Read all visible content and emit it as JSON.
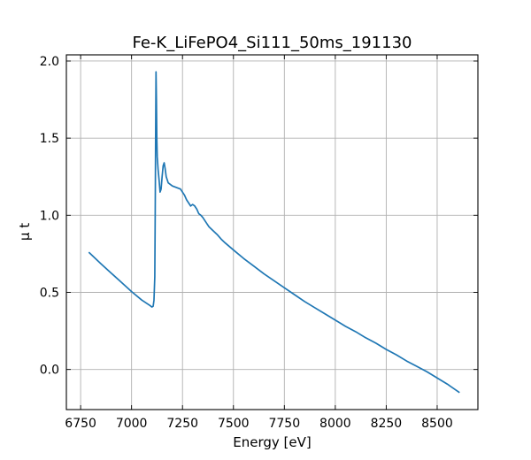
{
  "chart_data": {
    "type": "line",
    "title": "Fe-K_LiFePO4_Si111_50ms_191130",
    "xlabel": "Energy [eV]",
    "ylabel": "μ t",
    "xlim": [
      6680,
      8700
    ],
    "ylim": [
      -0.26,
      2.04
    ],
    "xticks": [
      6750,
      7000,
      7250,
      7500,
      7750,
      8000,
      8250,
      8500
    ],
    "yticks": [
      0.0,
      0.5,
      1.0,
      1.5,
      2.0
    ],
    "xtick_labels": [
      "6750",
      "7000",
      "7250",
      "7500",
      "7750",
      "8000",
      "8250",
      "8500"
    ],
    "ytick_labels": [
      "0.0",
      "0.5",
      "1.0",
      "1.5",
      "2.0"
    ],
    "grid": true,
    "tick_direction": "in",
    "series": [
      {
        "color": "#1f77b4",
        "x": [
          6790,
          6850,
          6900,
          6950,
          7000,
          7050,
          7090,
          7100,
          7106,
          7110,
          7114,
          7116,
          7118,
          7120,
          7122,
          7124,
          7126,
          7130,
          7135,
          7140,
          7145,
          7150,
          7155,
          7160,
          7165,
          7170,
          7180,
          7190,
          7200,
          7220,
          7240,
          7250,
          7260,
          7270,
          7280,
          7290,
          7300,
          7310,
          7320,
          7330,
          7340,
          7350,
          7360,
          7370,
          7380,
          7400,
          7420,
          7440,
          7460,
          7500,
          7550,
          7600,
          7650,
          7700,
          7750,
          7800,
          7850,
          7900,
          7950,
          8000,
          8050,
          8100,
          8150,
          8200,
          8250,
          8300,
          8350,
          8400,
          8450,
          8500,
          8550,
          8610
        ],
        "y": [
          0.76,
          0.685,
          0.625,
          0.565,
          0.505,
          0.45,
          0.415,
          0.405,
          0.41,
          0.45,
          0.6,
          1.0,
          1.5,
          1.93,
          1.75,
          1.5,
          1.38,
          1.3,
          1.23,
          1.15,
          1.17,
          1.25,
          1.32,
          1.34,
          1.3,
          1.25,
          1.21,
          1.2,
          1.19,
          1.18,
          1.17,
          1.15,
          1.13,
          1.1,
          1.08,
          1.06,
          1.07,
          1.06,
          1.04,
          1.01,
          1.0,
          0.985,
          0.965,
          0.945,
          0.925,
          0.9,
          0.875,
          0.845,
          0.82,
          0.775,
          0.72,
          0.67,
          0.62,
          0.575,
          0.53,
          0.485,
          0.44,
          0.4,
          0.36,
          0.32,
          0.28,
          0.245,
          0.205,
          0.17,
          0.13,
          0.095,
          0.055,
          0.02,
          -0.015,
          -0.055,
          -0.095,
          -0.15
        ]
      }
    ]
  }
}
